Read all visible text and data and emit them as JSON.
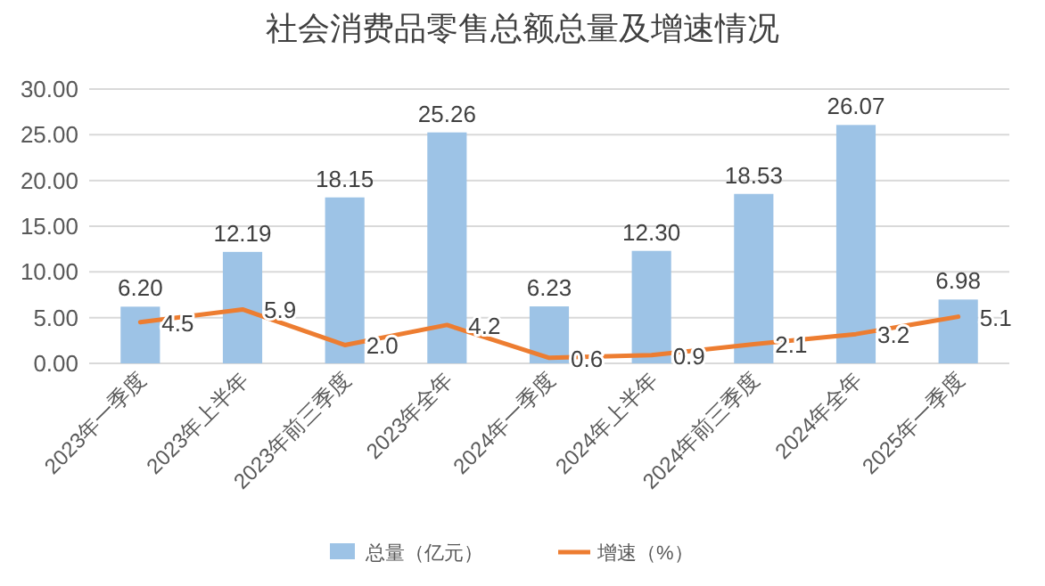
{
  "chart_data": {
    "type": "bar",
    "title": "社会消费品零售总额总量及增速情况",
    "categories": [
      "2023年一季度",
      "2023年上半年",
      "2023年前三季度",
      "2023年全年",
      "2024年一季度",
      "2024年上半年",
      "2024年前三季度",
      "2024年全年",
      "2025年一季度"
    ],
    "series": [
      {
        "name": "总量（亿元）",
        "color": "#9dc3e6",
        "values": [
          6.2,
          12.19,
          18.15,
          25.26,
          6.23,
          12.3,
          18.53,
          26.07,
          6.98
        ],
        "value_labels": [
          "6.20",
          "12.19",
          "18.15",
          "25.26",
          "6.23",
          "12.30",
          "18.53",
          "26.07",
          "6.98"
        ]
      },
      {
        "name": "增速（%）",
        "type": "line",
        "color": "#ed7d31",
        "values": [
          4.5,
          5.9,
          2.0,
          4.2,
          0.6,
          0.9,
          2.1,
          3.2,
          5.1
        ],
        "value_labels": [
          "4.5",
          "5.9",
          "2.0",
          "4.2",
          "0.6",
          "0.9",
          "2.1",
          "3.2",
          "5.1"
        ]
      }
    ],
    "ylim": [
      0,
      30
    ],
    "yticks": [
      {
        "value": 0,
        "label": "0.00"
      },
      {
        "value": 5,
        "label": "5.00"
      },
      {
        "value": 10,
        "label": "10.00"
      },
      {
        "value": 15,
        "label": "15.00"
      },
      {
        "value": 20,
        "label": "20.00"
      },
      {
        "value": 25,
        "label": "25.00"
      },
      {
        "value": 30,
        "label": "30.00"
      }
    ],
    "grid": "y",
    "legend": "bottom",
    "marker": "none",
    "line_style": "solid"
  }
}
